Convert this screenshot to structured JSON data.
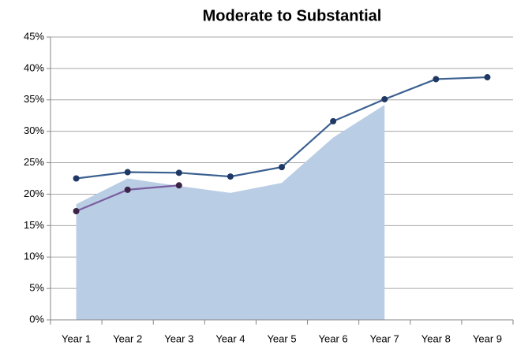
{
  "chart_data": {
    "type": "line",
    "title": "Moderate to Substantial",
    "categories": [
      "Year 1",
      "Year 2",
      "Year 3",
      "Year 4",
      "Year 5",
      "Year 6",
      "Year 7",
      "Year 8",
      "Year 9"
    ],
    "series": [
      {
        "kind": "area",
        "color": "#b9cde5",
        "values": [
          18.4,
          22.5,
          21.3,
          20.2,
          21.8,
          29.0,
          34.2,
          null,
          null
        ]
      },
      {
        "kind": "line",
        "color": "#3b6090",
        "marker_color": "#1f3864",
        "values": [
          22.5,
          23.5,
          23.4,
          22.8,
          24.3,
          31.6,
          35.1,
          38.3,
          38.6
        ]
      },
      {
        "kind": "line",
        "color": "#7b5fa0",
        "marker_color": "#3b2447",
        "values": [
          17.3,
          20.7,
          21.4,
          null,
          null,
          null,
          null,
          null,
          null
        ]
      }
    ],
    "ylim": [
      0,
      45
    ],
    "yticks": [
      {
        "value": 0,
        "label": "0%"
      },
      {
        "value": 5,
        "label": "5%"
      },
      {
        "value": 10,
        "label": "10%"
      },
      {
        "value": 15,
        "label": "15%"
      },
      {
        "value": 20,
        "label": "20%"
      },
      {
        "value": 25,
        "label": "25%"
      },
      {
        "value": 30,
        "label": "30%"
      },
      {
        "value": 35,
        "label": "35%"
      },
      {
        "value": 40,
        "label": "40%"
      },
      {
        "value": 45,
        "label": "45%"
      }
    ],
    "grid": true
  }
}
